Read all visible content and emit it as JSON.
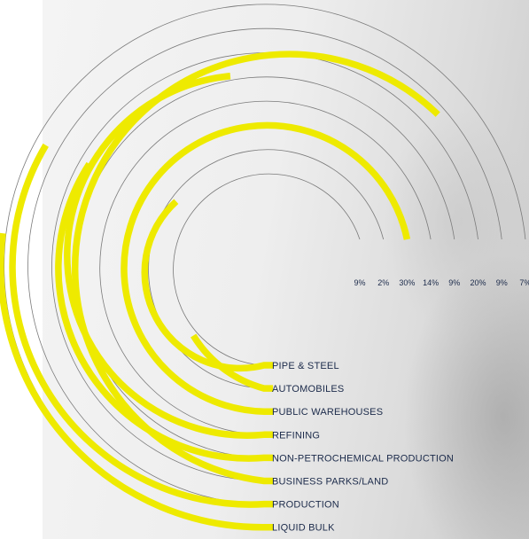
{
  "colors": {
    "bar": "#eeea00",
    "ring": "#7a7a7a",
    "text": "#1b2a4a"
  },
  "chart_data": {
    "type": "radial-bar",
    "series": [
      {
        "category": "PIPE & STEEL",
        "value": 9,
        "label": "9%"
      },
      {
        "category": "AUTOMOBILES",
        "value": 2,
        "label": "2%"
      },
      {
        "category": "PUBLIC WAREHOUSES",
        "value": 30,
        "label": "30%"
      },
      {
        "category": "REFINING",
        "value": 14,
        "label": "14%"
      },
      {
        "category": "NON-PETROCHEMICAL PRODUCTION",
        "value": 9,
        "label": "9%"
      },
      {
        "category": "BUSINESS PARKS/LAND",
        "value": 20,
        "label": "20%"
      },
      {
        "category": "PRODUCTION",
        "value": 9,
        "label": "9%"
      },
      {
        "category": "LIQUID BULK",
        "value": 7,
        "label": "7%"
      }
    ]
  }
}
